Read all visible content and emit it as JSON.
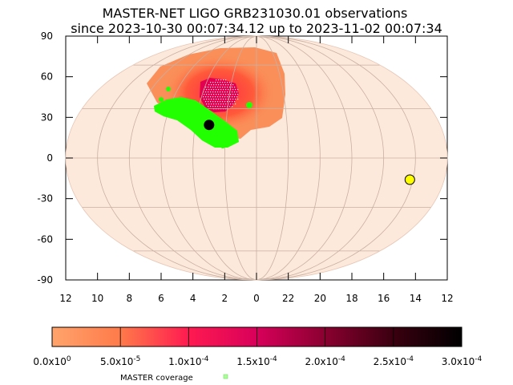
{
  "chart_data": {
    "type": "heatmap",
    "projection": "mollweide",
    "title": "MASTER-NET LIGO GRB231030.01 observations",
    "subtitle": "since 2023-10-30 00:07:34.12 up to 2023-11-02 00:07:34",
    "y_ticks": [
      "90",
      "60",
      "30",
      "0",
      "-30",
      "-60",
      "-90"
    ],
    "y_tick_values": [
      90,
      60,
      30,
      0,
      -30,
      -60,
      -90
    ],
    "x_ticks": [
      "12",
      "10",
      "8",
      "6",
      "4",
      "2",
      "0",
      "22",
      "20",
      "18",
      "16",
      "14",
      "12"
    ],
    "x_tick_values": [
      12,
      10,
      8,
      6,
      4,
      2,
      0,
      22,
      20,
      18,
      16,
      14,
      12
    ],
    "ylim": [
      -90,
      90
    ],
    "grid": true,
    "colorbar": {
      "ticks": [
        {
          "mant": "0.0x10",
          "exp": "0"
        },
        {
          "mant": "5.0x10",
          "exp": "-5"
        },
        {
          "mant": "1.0x10",
          "exp": "-4"
        },
        {
          "mant": "1.5x10",
          "exp": "-4"
        },
        {
          "mant": "2.0x10",
          "exp": "-4"
        },
        {
          "mant": "2.5x10",
          "exp": "-4"
        },
        {
          "mant": "3.0x10",
          "exp": "-4"
        }
      ],
      "range": [
        0,
        0.0003
      ],
      "colors": [
        "#ffa46c",
        "#ff7a4a",
        "#ff1a50",
        "#d8005a",
        "#8a0030",
        "#3a0010",
        "#000000"
      ]
    },
    "legend": {
      "label": "MASTER coverage",
      "color": "#aaff99"
    },
    "markers": [
      {
        "name": "sun",
        "ra_h": 14.2,
        "dec": -13,
        "color": "#ffff00"
      },
      {
        "name": "moon",
        "ra_h": 3.1,
        "dec": 20,
        "color": "#000000"
      }
    ],
    "colors": {
      "background_fill": "#fde9dc",
      "probability_low": "#fa8f5a",
      "probability_mid": "#ff4a3d",
      "probability_high": "#e40050",
      "coverage": "#22ff00"
    }
  }
}
